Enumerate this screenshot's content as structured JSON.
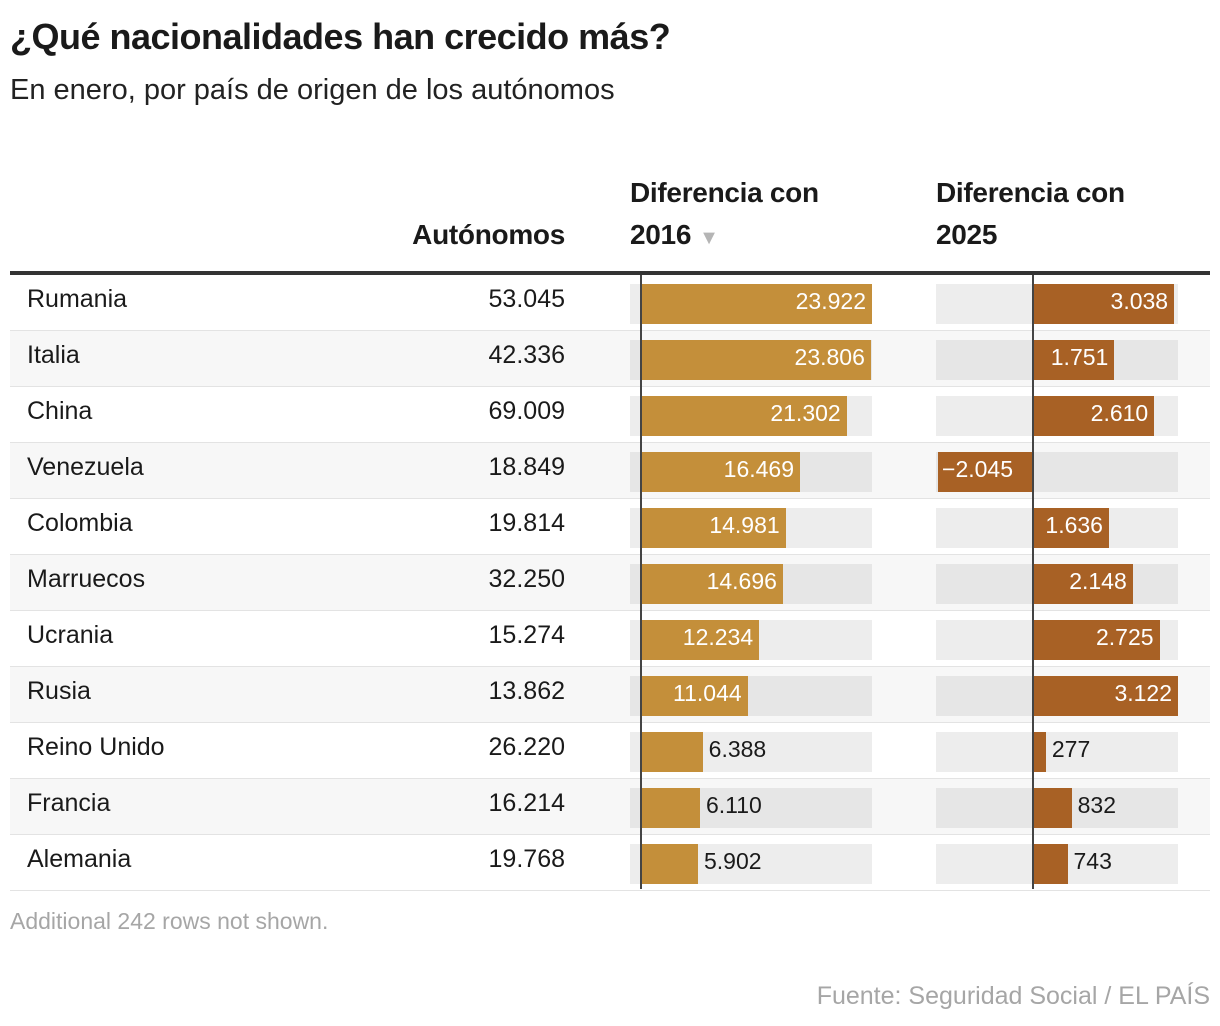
{
  "title": "¿Qué nacionalidades han crecido más?",
  "subtitle": "En enero, por país de origen de los autónomos",
  "headers": {
    "autonomos": "Autónomos",
    "diff2016": "Diferencia con 2016",
    "diff2025": "Diferencia con 2025",
    "sort_icon": "▼"
  },
  "colors": {
    "diff2016": "#c48f3a",
    "diff2025": "#a86125"
  },
  "chart_data": {
    "type": "table",
    "columns": [
      "",
      "Autónomos",
      "Diferencia con 2016",
      "Diferencia con 2025"
    ],
    "rows": [
      {
        "country": "Rumania",
        "autonomos": "53.045",
        "d2016": 23922,
        "d2016_label": "23.922",
        "d2025": 3038,
        "d2025_label": "3.038"
      },
      {
        "country": "Italia",
        "autonomos": "42.336",
        "d2016": 23806,
        "d2016_label": "23.806",
        "d2025": 1751,
        "d2025_label": "1.751"
      },
      {
        "country": "China",
        "autonomos": "69.009",
        "d2016": 21302,
        "d2016_label": "21.302",
        "d2025": 2610,
        "d2025_label": "2.610"
      },
      {
        "country": "Venezuela",
        "autonomos": "18.849",
        "d2016": 16469,
        "d2016_label": "16.469",
        "d2025": -2045,
        "d2025_label": "−2.045"
      },
      {
        "country": "Colombia",
        "autonomos": "19.814",
        "d2016": 14981,
        "d2016_label": "14.981",
        "d2025": 1636,
        "d2025_label": "1.636"
      },
      {
        "country": "Marruecos",
        "autonomos": "32.250",
        "d2016": 14696,
        "d2016_label": "14.696",
        "d2025": 2148,
        "d2025_label": "2.148"
      },
      {
        "country": "Ucrania",
        "autonomos": "15.274",
        "d2016": 12234,
        "d2016_label": "12.234",
        "d2025": 2725,
        "d2025_label": "2.725"
      },
      {
        "country": "Rusia",
        "autonomos": "13.862",
        "d2016": 11044,
        "d2016_label": "11.044",
        "d2025": 3122,
        "d2025_label": "3.122"
      },
      {
        "country": "Reino Unido",
        "autonomos": "26.220",
        "d2016": 6388,
        "d2016_label": "6.388",
        "d2025": 277,
        "d2025_label": "277"
      },
      {
        "country": "Francia",
        "autonomos": "16.214",
        "d2016": 6110,
        "d2016_label": "6.110",
        "d2025": 832,
        "d2025_label": "832"
      },
      {
        "country": "Alemania",
        "autonomos": "19.768",
        "d2016": 5902,
        "d2016_label": "5.902",
        "d2025": 743,
        "d2025_label": "743"
      }
    ]
  },
  "note": "Additional 242 rows not shown.",
  "source": "Fuente: Seguridad Social / EL PAÍS"
}
